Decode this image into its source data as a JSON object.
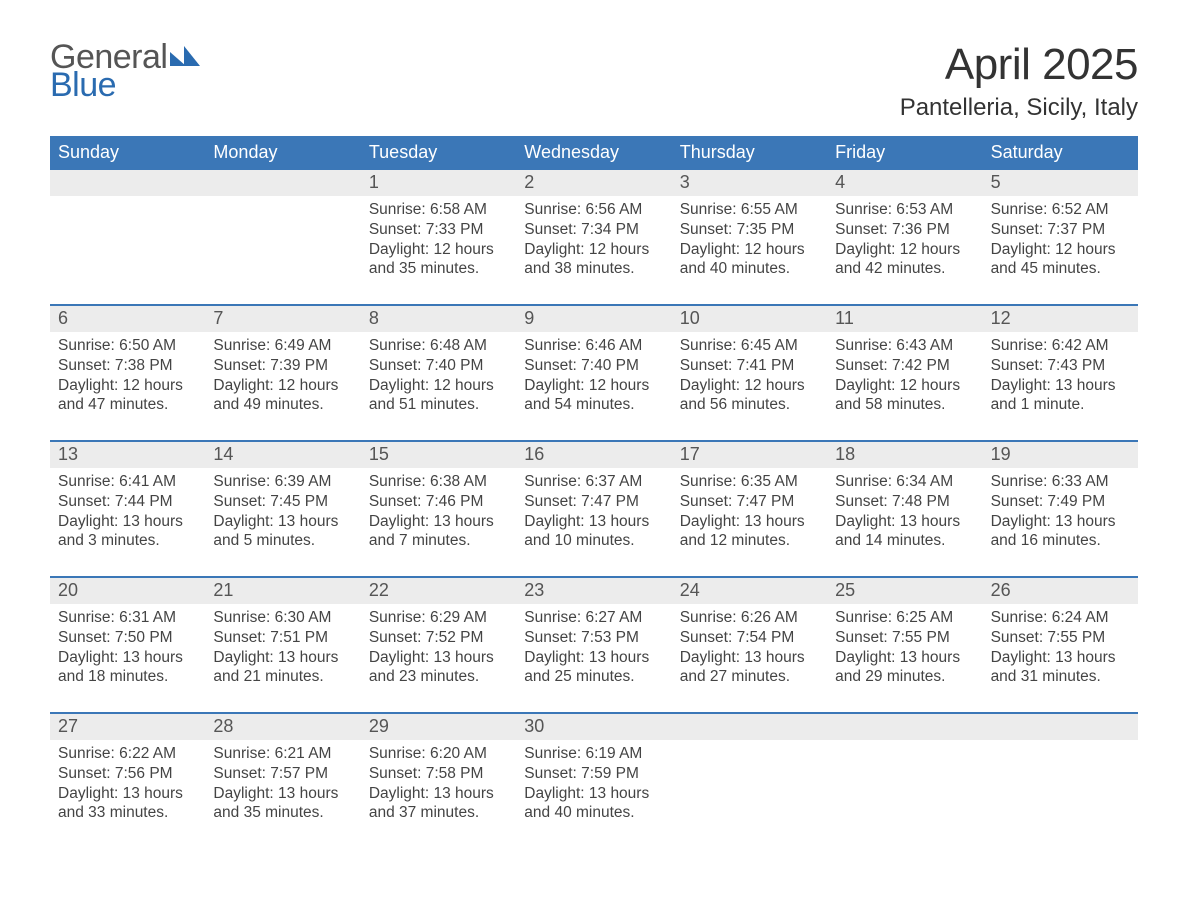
{
  "logo": {
    "word1": "General",
    "word2": "Blue",
    "tri_color": "#2a6bb0",
    "word1_color": "#555555",
    "word2_color": "#2a6bb0"
  },
  "title": "April 2025",
  "location": "Pantelleria, Sicily, Italy",
  "colors": {
    "header_bg": "#3b77b7",
    "header_fg": "#ffffff",
    "daynum_bg": "#ececec",
    "week_border": "#3b77b7",
    "text": "#444444",
    "page_bg": "#ffffff"
  },
  "days_of_week": [
    "Sunday",
    "Monday",
    "Tuesday",
    "Wednesday",
    "Thursday",
    "Friday",
    "Saturday"
  ],
  "weeks": [
    [
      {
        "num": "",
        "lines": []
      },
      {
        "num": "",
        "lines": []
      },
      {
        "num": "1",
        "lines": [
          "Sunrise: 6:58 AM",
          "Sunset: 7:33 PM",
          "Daylight: 12 hours and 35 minutes."
        ]
      },
      {
        "num": "2",
        "lines": [
          "Sunrise: 6:56 AM",
          "Sunset: 7:34 PM",
          "Daylight: 12 hours and 38 minutes."
        ]
      },
      {
        "num": "3",
        "lines": [
          "Sunrise: 6:55 AM",
          "Sunset: 7:35 PM",
          "Daylight: 12 hours and 40 minutes."
        ]
      },
      {
        "num": "4",
        "lines": [
          "Sunrise: 6:53 AM",
          "Sunset: 7:36 PM",
          "Daylight: 12 hours and 42 minutes."
        ]
      },
      {
        "num": "5",
        "lines": [
          "Sunrise: 6:52 AM",
          "Sunset: 7:37 PM",
          "Daylight: 12 hours and 45 minutes."
        ]
      }
    ],
    [
      {
        "num": "6",
        "lines": [
          "Sunrise: 6:50 AM",
          "Sunset: 7:38 PM",
          "Daylight: 12 hours and 47 minutes."
        ]
      },
      {
        "num": "7",
        "lines": [
          "Sunrise: 6:49 AM",
          "Sunset: 7:39 PM",
          "Daylight: 12 hours and 49 minutes."
        ]
      },
      {
        "num": "8",
        "lines": [
          "Sunrise: 6:48 AM",
          "Sunset: 7:40 PM",
          "Daylight: 12 hours and 51 minutes."
        ]
      },
      {
        "num": "9",
        "lines": [
          "Sunrise: 6:46 AM",
          "Sunset: 7:40 PM",
          "Daylight: 12 hours and 54 minutes."
        ]
      },
      {
        "num": "10",
        "lines": [
          "Sunrise: 6:45 AM",
          "Sunset: 7:41 PM",
          "Daylight: 12 hours and 56 minutes."
        ]
      },
      {
        "num": "11",
        "lines": [
          "Sunrise: 6:43 AM",
          "Sunset: 7:42 PM",
          "Daylight: 12 hours and 58 minutes."
        ]
      },
      {
        "num": "12",
        "lines": [
          "Sunrise: 6:42 AM",
          "Sunset: 7:43 PM",
          "Daylight: 13 hours and 1 minute."
        ]
      }
    ],
    [
      {
        "num": "13",
        "lines": [
          "Sunrise: 6:41 AM",
          "Sunset: 7:44 PM",
          "Daylight: 13 hours and 3 minutes."
        ]
      },
      {
        "num": "14",
        "lines": [
          "Sunrise: 6:39 AM",
          "Sunset: 7:45 PM",
          "Daylight: 13 hours and 5 minutes."
        ]
      },
      {
        "num": "15",
        "lines": [
          "Sunrise: 6:38 AM",
          "Sunset: 7:46 PM",
          "Daylight: 13 hours and 7 minutes."
        ]
      },
      {
        "num": "16",
        "lines": [
          "Sunrise: 6:37 AM",
          "Sunset: 7:47 PM",
          "Daylight: 13 hours and 10 minutes."
        ]
      },
      {
        "num": "17",
        "lines": [
          "Sunrise: 6:35 AM",
          "Sunset: 7:47 PM",
          "Daylight: 13 hours and 12 minutes."
        ]
      },
      {
        "num": "18",
        "lines": [
          "Sunrise: 6:34 AM",
          "Sunset: 7:48 PM",
          "Daylight: 13 hours and 14 minutes."
        ]
      },
      {
        "num": "19",
        "lines": [
          "Sunrise: 6:33 AM",
          "Sunset: 7:49 PM",
          "Daylight: 13 hours and 16 minutes."
        ]
      }
    ],
    [
      {
        "num": "20",
        "lines": [
          "Sunrise: 6:31 AM",
          "Sunset: 7:50 PM",
          "Daylight: 13 hours and 18 minutes."
        ]
      },
      {
        "num": "21",
        "lines": [
          "Sunrise: 6:30 AM",
          "Sunset: 7:51 PM",
          "Daylight: 13 hours and 21 minutes."
        ]
      },
      {
        "num": "22",
        "lines": [
          "Sunrise: 6:29 AM",
          "Sunset: 7:52 PM",
          "Daylight: 13 hours and 23 minutes."
        ]
      },
      {
        "num": "23",
        "lines": [
          "Sunrise: 6:27 AM",
          "Sunset: 7:53 PM",
          "Daylight: 13 hours and 25 minutes."
        ]
      },
      {
        "num": "24",
        "lines": [
          "Sunrise: 6:26 AM",
          "Sunset: 7:54 PM",
          "Daylight: 13 hours and 27 minutes."
        ]
      },
      {
        "num": "25",
        "lines": [
          "Sunrise: 6:25 AM",
          "Sunset: 7:55 PM",
          "Daylight: 13 hours and 29 minutes."
        ]
      },
      {
        "num": "26",
        "lines": [
          "Sunrise: 6:24 AM",
          "Sunset: 7:55 PM",
          "Daylight: 13 hours and 31 minutes."
        ]
      }
    ],
    [
      {
        "num": "27",
        "lines": [
          "Sunrise: 6:22 AM",
          "Sunset: 7:56 PM",
          "Daylight: 13 hours and 33 minutes."
        ]
      },
      {
        "num": "28",
        "lines": [
          "Sunrise: 6:21 AM",
          "Sunset: 7:57 PM",
          "Daylight: 13 hours and 35 minutes."
        ]
      },
      {
        "num": "29",
        "lines": [
          "Sunrise: 6:20 AM",
          "Sunset: 7:58 PM",
          "Daylight: 13 hours and 37 minutes."
        ]
      },
      {
        "num": "30",
        "lines": [
          "Sunrise: 6:19 AM",
          "Sunset: 7:59 PM",
          "Daylight: 13 hours and 40 minutes."
        ]
      },
      {
        "num": "",
        "lines": []
      },
      {
        "num": "",
        "lines": []
      },
      {
        "num": "",
        "lines": []
      }
    ]
  ]
}
